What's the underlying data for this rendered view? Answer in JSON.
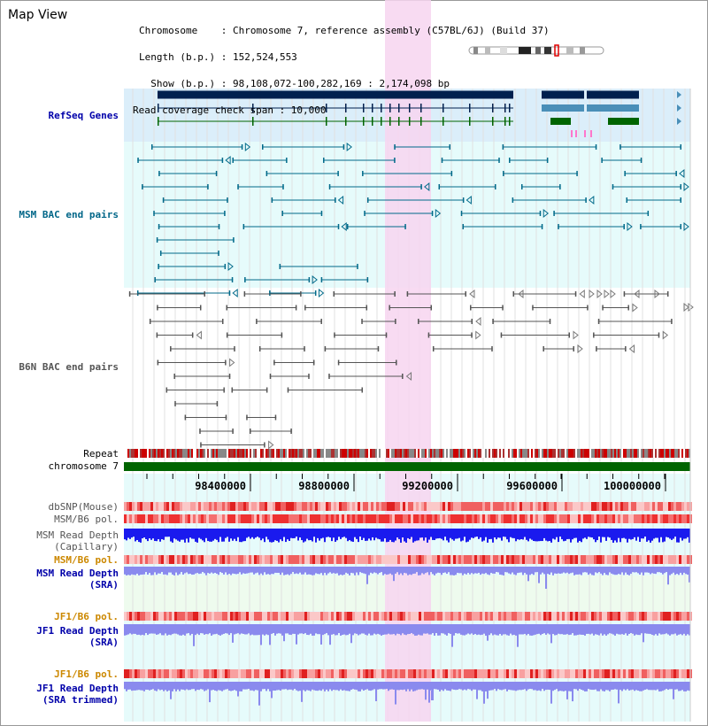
{
  "header": {
    "title": "Map View",
    "chromosome_line": "Chromosome    : Chromosome 7, reference assembly (C57BL/6J) (Build 37)",
    "length_line": "Length (b.p.) : 152,524,553",
    "show_line": "  Show (b.p.) : 98,108,072-100,282,169 : 2,174,098 bp",
    "span_line": "Read coverage check span : 10,000"
  },
  "tracks": {
    "refseq": "RefSeq Genes",
    "msm_bac": "MSM BAC end pairs",
    "b6n_bac": "B6N BAC end pairs",
    "repeat": "Repeat",
    "chromosome": "chromosome 7",
    "dbsnp": "dbSNP(Mouse)",
    "msm_b6_pol_1": "MSM/B6 pol.",
    "msm_read_depth_cap_1": "MSM Read Depth",
    "msm_read_depth_cap_2": "(Capillary)",
    "msm_b6_pol_2": "MSM/B6 pol.",
    "msm_read_depth_sra_1": "MSM Read Depth",
    "msm_read_depth_sra_2": "(SRA)",
    "jf1_b6_pol_1": "JF1/B6 pol.",
    "jf1_read_depth_sra_1": "JF1 Read Depth",
    "jf1_read_depth_sra_2": "(SRA)",
    "jf1_b6_pol_2": "JF1/B6 pol.",
    "jf1_read_depth_trim_1": "JF1 Read Depth",
    "jf1_read_depth_trim_2": "(SRA trimmed)"
  },
  "ruler": {
    "ticks": [
      "98400000",
      "98800000",
      "99200000",
      "99600000",
      "100000000"
    ]
  },
  "colors": {
    "refseq_bg": "#dbeefa",
    "bac_bg": "#e6fbfb",
    "highlight": "#f7d5f0",
    "chromosome_bar": "#006400",
    "gene_dark": "#00204e",
    "gene_mid": "#4a8fb8",
    "gene_green": "#006400",
    "msm_bac": "#006a8a",
    "b6n_bac": "#555555",
    "depth_cap": "#1a1aee",
    "depth_sra": "#8a8aee"
  }
}
